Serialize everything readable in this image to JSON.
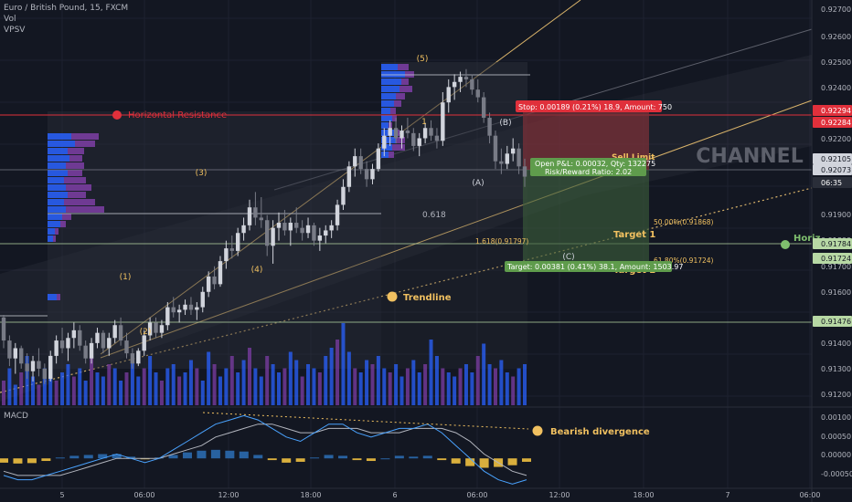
{
  "header": {
    "symbol": "Euro / British Pound, 15, FXCM",
    "vol": "Vol",
    "vpsv": "VPSV",
    "macd": "MACD"
  },
  "colors": {
    "background": "#131722",
    "grid": "#1e2230",
    "up_candle": "#d1d4dc",
    "down_candle": "#787b86",
    "volume_a": "#2962ff",
    "volume_b": "#7e3ea6",
    "resistance": "#e0303b",
    "support": "#b7d8a4",
    "fib": "#d9b36a",
    "stop_zone": "#7a3038",
    "target_zone": "#3a5a3a",
    "macd_line": "#4aa3ff",
    "signal_line": "#b2b5be",
    "hist_pos": "#2b6aaf",
    "hist_neg": "#f0c040",
    "annotation": "#f0c060"
  },
  "price_axis": {
    "ticks": [
      "0.92700",
      "0.92600",
      "0.92500",
      "0.92400",
      "0.92200",
      "0.91900",
      "0.91800",
      "0.91700",
      "0.91600",
      "0.91500",
      "0.91400",
      "0.91300",
      "0.91200"
    ],
    "badges": [
      {
        "text": "0.92294",
        "color": "#e0303b"
      },
      {
        "text": "0.92284",
        "color": "#e0303b"
      },
      {
        "text": "0.92105",
        "color": "#d1d4dc"
      },
      {
        "text": "0.92073",
        "color": "#d1d4dc"
      },
      {
        "text": "06:35",
        "color": "#2a2e39"
      },
      {
        "text": "0.91784",
        "color": "#b7d8a4"
      },
      {
        "text": "0.91724",
        "color": "#b7d8a4"
      },
      {
        "text": "0.91476",
        "color": "#b7d8a4"
      }
    ]
  },
  "macd_axis": {
    "ticks": [
      "0.00100",
      "0.00050",
      "0.00000",
      "-0.00050"
    ]
  },
  "time_axis": {
    "ticks": [
      "5",
      "06:00",
      "12:00",
      "18:00",
      "6",
      "06:00",
      "12:00",
      "18:00",
      "7",
      "06:00"
    ]
  },
  "annotations": {
    "horizontal_resistance": "Horizontal Resistance",
    "trendline": "Trendline",
    "bearish_divergence": "Bearish divergence",
    "channel": "CHANNEL",
    "horiz": "Horiz",
    "target1": "Target 1",
    "target2": "Target 2",
    "sell_limit": "Sell Limit",
    "waves": [
      "(1)",
      "(2)",
      "(3)",
      "(4)",
      "(5)",
      "(A)",
      "(B)",
      "(C)",
      "1"
    ],
    "fib_0618": "0.618",
    "fib_1618": "1.618(0.91797)",
    "fib_50": "50.00%(0.91868)",
    "fib_618": "61.80%(0.91724)",
    "stop_box": "Stop: 0.00189 (0.21%) 18.9, Amount: 750",
    "pl_box_line1": "Open P&L: 0.00032, Qty: 132275",
    "pl_box_line2": "Risk/Reward Ratio: 2.02",
    "target_box": "Target: 0.00381 (0.41%) 38.1, Amount: 1503.97"
  },
  "chart_data": {
    "type": "candlestick",
    "title": "Euro / British Pound, 15, FXCM",
    "ylim": [
      0.9117,
      0.9276
    ],
    "candles": [
      [
        0.9152,
        0.9153,
        0.914,
        0.9143
      ],
      [
        0.9143,
        0.9145,
        0.9133,
        0.9136
      ],
      [
        0.9136,
        0.9142,
        0.913,
        0.914
      ],
      [
        0.914,
        0.9141,
        0.9132,
        0.9134
      ],
      [
        0.9134,
        0.9138,
        0.9128,
        0.9131
      ],
      [
        0.9131,
        0.9137,
        0.9127,
        0.9135
      ],
      [
        0.9135,
        0.914,
        0.9129,
        0.9132
      ],
      [
        0.9132,
        0.9134,
        0.9126,
        0.9128
      ],
      [
        0.9128,
        0.9139,
        0.9127,
        0.9137
      ],
      [
        0.9137,
        0.9145,
        0.9134,
        0.9143
      ],
      [
        0.9143,
        0.9148,
        0.9138,
        0.914
      ],
      [
        0.914,
        0.9146,
        0.9135,
        0.9144
      ],
      [
        0.9144,
        0.915,
        0.914,
        0.9147
      ],
      [
        0.9147,
        0.9149,
        0.9139,
        0.9141
      ],
      [
        0.9141,
        0.9143,
        0.9134,
        0.9136
      ],
      [
        0.9136,
        0.9144,
        0.9134,
        0.9142
      ],
      [
        0.9142,
        0.9148,
        0.914,
        0.9146
      ],
      [
        0.9146,
        0.9147,
        0.9138,
        0.914
      ],
      [
        0.914,
        0.9146,
        0.9137,
        0.9144
      ],
      [
        0.9144,
        0.9151,
        0.9142,
        0.9149
      ],
      [
        0.9149,
        0.9152,
        0.9141,
        0.9143
      ],
      [
        0.9143,
        0.9146,
        0.9136,
        0.9138
      ],
      [
        0.9138,
        0.914,
        0.9132,
        0.9134
      ],
      [
        0.9134,
        0.914,
        0.9133,
        0.9139
      ],
      [
        0.9139,
        0.9147,
        0.9137,
        0.9145
      ],
      [
        0.9145,
        0.9152,
        0.9143,
        0.915
      ],
      [
        0.915,
        0.9152,
        0.9144,
        0.9146
      ],
      [
        0.9146,
        0.9151,
        0.9144,
        0.9149
      ],
      [
        0.9149,
        0.9158,
        0.9147,
        0.9156
      ],
      [
        0.9156,
        0.916,
        0.9152,
        0.9154
      ],
      [
        0.9154,
        0.9157,
        0.915,
        0.9155
      ],
      [
        0.9155,
        0.9159,
        0.9153,
        0.9157
      ],
      [
        0.9157,
        0.916,
        0.9153,
        0.9155
      ],
      [
        0.9155,
        0.9158,
        0.9151,
        0.9156
      ],
      [
        0.9156,
        0.9164,
        0.9154,
        0.9162
      ],
      [
        0.9162,
        0.917,
        0.916,
        0.9168
      ],
      [
        0.9168,
        0.9172,
        0.9163,
        0.9165
      ],
      [
        0.9165,
        0.9176,
        0.9164,
        0.9174
      ],
      [
        0.9174,
        0.9182,
        0.9171,
        0.9179
      ],
      [
        0.9179,
        0.9184,
        0.9175,
        0.9178
      ],
      [
        0.9178,
        0.9187,
        0.9176,
        0.9185
      ],
      [
        0.9185,
        0.9191,
        0.9182,
        0.9188
      ],
      [
        0.9188,
        0.9198,
        0.9186,
        0.9195
      ],
      [
        0.9195,
        0.9201,
        0.9188,
        0.9191
      ],
      [
        0.9191,
        0.9199,
        0.9187,
        0.919
      ],
      [
        0.919,
        0.9192,
        0.9176,
        0.918
      ],
      [
        0.918,
        0.919,
        0.9173,
        0.9187
      ],
      [
        0.9187,
        0.9193,
        0.9182,
        0.9189
      ],
      [
        0.9189,
        0.9194,
        0.9184,
        0.9186
      ],
      [
        0.9186,
        0.9191,
        0.918,
        0.9189
      ],
      [
        0.9189,
        0.9195,
        0.9185,
        0.9187
      ],
      [
        0.9187,
        0.919,
        0.9182,
        0.9185
      ],
      [
        0.9185,
        0.9191,
        0.9183,
        0.9188
      ],
      [
        0.9188,
        0.9189,
        0.918,
        0.9182
      ],
      [
        0.9182,
        0.9187,
        0.9178,
        0.9184
      ],
      [
        0.9184,
        0.9188,
        0.9181,
        0.9186
      ],
      [
        0.9186,
        0.919,
        0.9183,
        0.9188
      ],
      [
        0.9188,
        0.9198,
        0.9186,
        0.9196
      ],
      [
        0.9196,
        0.9206,
        0.9194,
        0.9203
      ],
      [
        0.9203,
        0.9213,
        0.9201,
        0.9211
      ],
      [
        0.9211,
        0.9218,
        0.9207,
        0.9215
      ],
      [
        0.9215,
        0.9218,
        0.9208,
        0.921
      ],
      [
        0.921,
        0.9213,
        0.9203,
        0.9206
      ],
      [
        0.9206,
        0.9212,
        0.9204,
        0.921
      ],
      [
        0.921,
        0.922,
        0.9209,
        0.9218
      ],
      [
        0.9218,
        0.9226,
        0.9215,
        0.9223
      ],
      [
        0.9223,
        0.9229,
        0.9219,
        0.9226
      ],
      [
        0.9226,
        0.923,
        0.922,
        0.9222
      ],
      [
        0.9222,
        0.9227,
        0.9218,
        0.9225
      ],
      [
        0.9225,
        0.923,
        0.9222,
        0.9224
      ],
      [
        0.9224,
        0.9226,
        0.9217,
        0.9219
      ],
      [
        0.9219,
        0.9224,
        0.9215,
        0.9222
      ],
      [
        0.9222,
        0.9228,
        0.922,
        0.9226
      ],
      [
        0.9226,
        0.9229,
        0.9221,
        0.9223
      ],
      [
        0.9223,
        0.9226,
        0.9218,
        0.9221
      ],
      [
        0.9221,
        0.924,
        0.9219,
        0.9236
      ],
      [
        0.9236,
        0.9245,
        0.9232,
        0.9242
      ],
      [
        0.9242,
        0.9247,
        0.9237,
        0.9244
      ],
      [
        0.9244,
        0.9248,
        0.924,
        0.9246
      ],
      [
        0.9246,
        0.9249,
        0.9242,
        0.9245
      ],
      [
        0.9245,
        0.9247,
        0.9239,
        0.9241
      ],
      [
        0.9241,
        0.9245,
        0.9236,
        0.9238
      ],
      [
        0.9238,
        0.924,
        0.9228,
        0.923
      ],
      [
        0.923,
        0.9232,
        0.922,
        0.9223
      ],
      [
        0.9223,
        0.9225,
        0.921,
        0.9213
      ],
      [
        0.9213,
        0.9218,
        0.9208,
        0.9212
      ],
      [
        0.9212,
        0.9219,
        0.921,
        0.9216
      ],
      [
        0.9216,
        0.9222,
        0.9213,
        0.9218
      ],
      [
        0.9218,
        0.922,
        0.9208,
        0.9211
      ],
      [
        0.9211,
        0.9214,
        0.9203,
        0.9207
      ]
    ],
    "volume": [
      6,
      9,
      5,
      8,
      12,
      7,
      5,
      9,
      11,
      6,
      8,
      10,
      7,
      9,
      6,
      12,
      8,
      7,
      10,
      9,
      6,
      8,
      11,
      7,
      9,
      12,
      8,
      6,
      9,
      10,
      7,
      8,
      11,
      9,
      6,
      13,
      10,
      7,
      9,
      12,
      8,
      11,
      14,
      9,
      7,
      12,
      10,
      8,
      9,
      13,
      11,
      7,
      10,
      9,
      8,
      12,
      14,
      16,
      20,
      13,
      9,
      8,
      11,
      10,
      12,
      9,
      8,
      10,
      7,
      9,
      11,
      8,
      10,
      16,
      12,
      9,
      8,
      7,
      9,
      10,
      8,
      12,
      15,
      10,
      9,
      11,
      8,
      7,
      9,
      10
    ],
    "macd": {
      "macd_line": [
        -0.0004,
        -0.0005,
        -0.0005,
        -0.0004,
        -0.0003,
        -0.0002,
        -0.0001,
        0.0,
        0.0001,
        0.0,
        -0.0001,
        0.0,
        0.0002,
        0.0004,
        0.0006,
        0.0008,
        0.0009,
        0.001,
        0.0009,
        0.0007,
        0.0005,
        0.0004,
        0.0006,
        0.0008,
        0.0008,
        0.0006,
        0.0005,
        0.0006,
        0.0007,
        0.0007,
        0.0008,
        0.0006,
        0.0003,
        0.0,
        -0.0003,
        -0.0005,
        -0.0006,
        -0.0005
      ],
      "signal_line": [
        -0.0003,
        -0.0004,
        -0.0004,
        -0.0004,
        -0.0004,
        -0.0003,
        -0.0002,
        -0.0001,
        0.0,
        0.0,
        0.0,
        0.0,
        0.0001,
        0.0002,
        0.0003,
        0.0005,
        0.0006,
        0.0007,
        0.0008,
        0.0008,
        0.0007,
        0.0006,
        0.0006,
        0.0007,
        0.0007,
        0.0007,
        0.0006,
        0.0006,
        0.0006,
        0.0007,
        0.0007,
        0.0007,
        0.0006,
        0.0004,
        0.0001,
        -0.0001,
        -0.0003,
        -0.0004
      ],
      "histogram": [
        -0.0001,
        -0.00012,
        -0.00011,
        -6e-05,
        2e-05,
        6e-05,
        8e-05,
        0.0001,
        0.0001,
        4e-05,
        -2e-05,
        2e-05,
        8e-05,
        0.00014,
        0.00018,
        0.0002,
        0.00018,
        0.00016,
        8e-05,
        -4e-05,
        -0.0001,
        -8e-05,
        2e-05,
        8e-05,
        6e-05,
        -4e-05,
        -6e-05,
        0.0,
        6e-05,
        4e-05,
        6e-05,
        -4e-05,
        -0.00012,
        -0.00018,
        -0.00022,
        -0.0002,
        -0.00016,
        -8e-05
      ]
    }
  }
}
